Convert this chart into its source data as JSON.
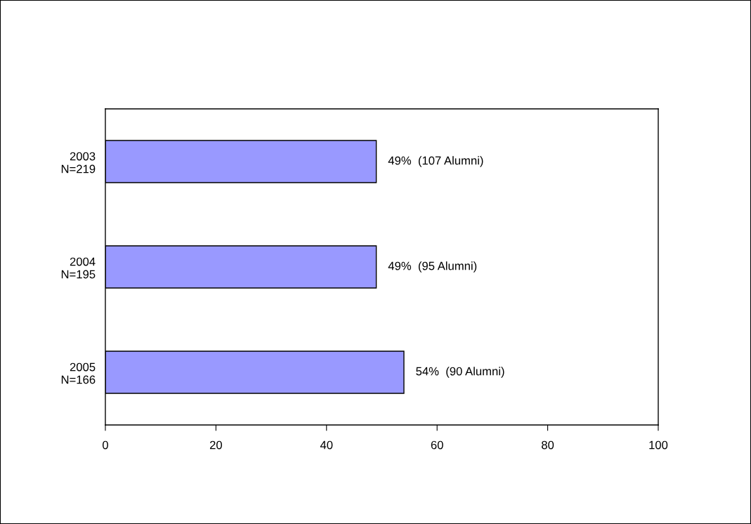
{
  "chart_data": {
    "type": "bar",
    "orientation": "horizontal",
    "categories": [
      "2003\nN=219",
      "2004\nN=195",
      "2005\nN=166"
    ],
    "values": [
      49,
      49,
      54
    ],
    "value_labels": [
      "49%  (107 Alumni)",
      "49%  (95 Alumni)",
      "54%  (90 Alumni)"
    ],
    "color": "#9999ff",
    "xlim": [
      0,
      100
    ],
    "xticks": [
      0,
      20,
      40,
      60,
      80,
      100
    ],
    "grid": false,
    "legend": false
  }
}
